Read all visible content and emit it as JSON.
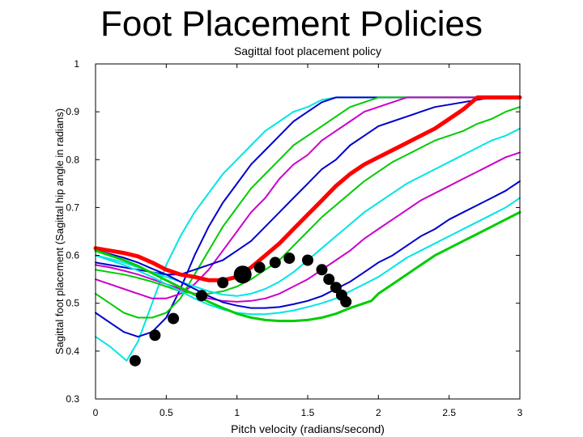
{
  "slide": {
    "title": "Foot Placement Policies"
  },
  "chart_data": {
    "type": "line",
    "title": "Sagittal foot placement policy",
    "xlabel": "Pitch velocity (radians/second)",
    "ylabel": "Sagittal foot placement (Sagittal hip angle in radians)",
    "xlim": [
      0,
      3
    ],
    "ylim": [
      0.3,
      1
    ],
    "xticks": [
      0,
      0.5,
      1,
      1.5,
      2,
      2.5,
      3
    ],
    "xtick_labels": [
      "0",
      "0.5",
      "1",
      "1.5",
      "2",
      "2.5",
      "3"
    ],
    "yticks": [
      0.3,
      0.4,
      0.5,
      0.6,
      0.7,
      0.8,
      0.9,
      1
    ],
    "ytick_labels": [
      "0.3",
      "0.4",
      "0.5",
      "0.6",
      "0.7",
      "0.8",
      "0.9",
      "1"
    ],
    "grid": false,
    "legend": "none",
    "series": [
      {
        "color": "#00e5e5",
        "width": 2,
        "x": [
          0,
          0.1,
          0.22,
          0.3,
          0.4,
          0.5,
          0.6,
          0.7,
          0.8,
          0.9,
          1.0,
          1.1,
          1.2,
          1.3,
          1.4,
          1.5,
          1.6,
          1.7,
          1.8,
          1.9,
          2.0,
          2.1,
          2.2,
          2.3,
          2.4,
          2.5,
          2.6,
          2.7,
          2.8,
          2.9,
          3.0
        ],
        "y": [
          0.43,
          0.41,
          0.38,
          0.42,
          0.5,
          0.58,
          0.64,
          0.69,
          0.73,
          0.77,
          0.8,
          0.83,
          0.86,
          0.88,
          0.9,
          0.91,
          0.925,
          0.93,
          0.93,
          0.93,
          0.93,
          0.93,
          0.93,
          0.93,
          0.93,
          0.93,
          0.93,
          0.93,
          0.93,
          0.93,
          0.93
        ]
      },
      {
        "color": "#0000cc",
        "width": 2,
        "x": [
          0,
          0.1,
          0.2,
          0.3,
          0.4,
          0.5,
          0.6,
          0.7,
          0.8,
          0.9,
          1.0,
          1.1,
          1.2,
          1.3,
          1.4,
          1.5,
          1.6,
          1.7,
          1.8,
          1.9,
          2.0,
          2.1,
          2.2,
          2.3,
          2.4,
          2.5,
          2.6,
          2.7,
          2.8,
          2.9,
          3.0
        ],
        "y": [
          0.48,
          0.46,
          0.44,
          0.43,
          0.44,
          0.47,
          0.53,
          0.6,
          0.66,
          0.71,
          0.75,
          0.79,
          0.82,
          0.85,
          0.88,
          0.9,
          0.92,
          0.93,
          0.93,
          0.93,
          0.93,
          0.93,
          0.93,
          0.93,
          0.93,
          0.93,
          0.93,
          0.93,
          0.93,
          0.93,
          0.93
        ]
      },
      {
        "color": "#00cc00",
        "width": 2,
        "x": [
          0,
          0.1,
          0.2,
          0.3,
          0.4,
          0.5,
          0.6,
          0.7,
          0.8,
          0.9,
          1.0,
          1.1,
          1.2,
          1.3,
          1.4,
          1.5,
          1.6,
          1.7,
          1.8,
          1.9,
          2.0,
          2.1,
          2.2,
          2.3,
          2.4,
          2.5,
          2.6,
          2.7,
          2.8,
          2.9,
          3.0
        ],
        "y": [
          0.52,
          0.5,
          0.48,
          0.47,
          0.47,
          0.48,
          0.51,
          0.56,
          0.61,
          0.66,
          0.7,
          0.74,
          0.77,
          0.8,
          0.83,
          0.85,
          0.87,
          0.89,
          0.91,
          0.92,
          0.93,
          0.93,
          0.93,
          0.93,
          0.93,
          0.93,
          0.93,
          0.93,
          0.93,
          0.93,
          0.93
        ]
      },
      {
        "color": "#cc00cc",
        "width": 2,
        "x": [
          0,
          0.1,
          0.2,
          0.3,
          0.4,
          0.5,
          0.6,
          0.7,
          0.8,
          0.9,
          1.0,
          1.1,
          1.2,
          1.3,
          1.4,
          1.5,
          1.6,
          1.7,
          1.8,
          1.9,
          2.0,
          2.1,
          2.2,
          2.3,
          2.4,
          2.5,
          2.6,
          2.7,
          2.8,
          2.9,
          3.0
        ],
        "y": [
          0.55,
          0.54,
          0.53,
          0.52,
          0.51,
          0.51,
          0.52,
          0.54,
          0.57,
          0.61,
          0.65,
          0.69,
          0.72,
          0.76,
          0.79,
          0.81,
          0.84,
          0.86,
          0.88,
          0.9,
          0.91,
          0.92,
          0.93,
          0.93,
          0.93,
          0.93,
          0.93,
          0.93,
          0.93,
          0.93,
          0.93
        ]
      },
      {
        "color": "#0000cc",
        "width": 2,
        "x": [
          0,
          0.1,
          0.2,
          0.3,
          0.4,
          0.5,
          0.6,
          0.7,
          0.8,
          0.9,
          1.0,
          1.1,
          1.2,
          1.3,
          1.4,
          1.5,
          1.6,
          1.7,
          1.8,
          1.9,
          2.0,
          2.1,
          2.2,
          2.3,
          2.4,
          2.5,
          2.6,
          2.7,
          2.8,
          2.9,
          3.0
        ],
        "y": [
          0.585,
          0.58,
          0.575,
          0.57,
          0.565,
          0.56,
          0.56,
          0.57,
          0.58,
          0.59,
          0.61,
          0.63,
          0.66,
          0.69,
          0.72,
          0.75,
          0.78,
          0.8,
          0.83,
          0.85,
          0.87,
          0.88,
          0.89,
          0.9,
          0.91,
          0.915,
          0.92,
          0.925,
          0.93,
          0.93,
          0.93
        ]
      },
      {
        "color": "#ff0000",
        "width": 5,
        "x": [
          0,
          0.1,
          0.2,
          0.3,
          0.4,
          0.5,
          0.6,
          0.7,
          0.8,
          0.9,
          1.0,
          1.1,
          1.2,
          1.3,
          1.4,
          1.5,
          1.6,
          1.7,
          1.8,
          1.9,
          2.0,
          2.1,
          2.2,
          2.3,
          2.4,
          2.5,
          2.6,
          2.7,
          2.8,
          2.9,
          3.0
        ],
        "y": [
          0.615,
          0.61,
          0.605,
          0.598,
          0.585,
          0.57,
          0.56,
          0.555,
          0.548,
          0.548,
          0.555,
          0.575,
          0.6,
          0.625,
          0.655,
          0.685,
          0.715,
          0.745,
          0.77,
          0.79,
          0.805,
          0.82,
          0.835,
          0.85,
          0.865,
          0.885,
          0.905,
          0.93,
          0.93,
          0.93,
          0.93
        ]
      },
      {
        "color": "#00cc00",
        "width": 2,
        "x": [
          0,
          0.1,
          0.2,
          0.3,
          0.4,
          0.5,
          0.6,
          0.7,
          0.8,
          0.9,
          1.0,
          1.1,
          1.2,
          1.3,
          1.4,
          1.5,
          1.6,
          1.7,
          1.8,
          1.9,
          2.0,
          2.1,
          2.2,
          2.3,
          2.4,
          2.5,
          2.6,
          2.7,
          2.8,
          2.9,
          3.0
        ],
        "y": [
          0.57,
          0.565,
          0.56,
          0.553,
          0.545,
          0.535,
          0.525,
          0.52,
          0.52,
          0.525,
          0.535,
          0.55,
          0.57,
          0.59,
          0.62,
          0.65,
          0.68,
          0.705,
          0.73,
          0.755,
          0.775,
          0.795,
          0.81,
          0.825,
          0.84,
          0.85,
          0.86,
          0.875,
          0.885,
          0.9,
          0.91
        ]
      },
      {
        "color": "#00e5e5",
        "width": 2,
        "x": [
          0,
          0.1,
          0.2,
          0.3,
          0.4,
          0.5,
          0.6,
          0.7,
          0.8,
          0.9,
          1.0,
          1.1,
          1.2,
          1.3,
          1.4,
          1.5,
          1.6,
          1.7,
          1.8,
          1.9,
          2.0,
          2.1,
          2.2,
          2.3,
          2.4,
          2.5,
          2.6,
          2.7,
          2.8,
          2.9,
          3.0
        ],
        "y": [
          0.6,
          0.593,
          0.585,
          0.575,
          0.565,
          0.555,
          0.545,
          0.535,
          0.525,
          0.518,
          0.515,
          0.52,
          0.53,
          0.545,
          0.565,
          0.59,
          0.615,
          0.64,
          0.665,
          0.69,
          0.71,
          0.73,
          0.75,
          0.765,
          0.78,
          0.795,
          0.81,
          0.825,
          0.84,
          0.85,
          0.865
        ]
      },
      {
        "color": "#cc00cc",
        "width": 2,
        "x": [
          0,
          0.1,
          0.2,
          0.3,
          0.4,
          0.5,
          0.6,
          0.7,
          0.8,
          0.9,
          1.0,
          1.1,
          1.2,
          1.3,
          1.4,
          1.5,
          1.6,
          1.7,
          1.8,
          1.9,
          2.0,
          2.1,
          2.2,
          2.3,
          2.4,
          2.5,
          2.6,
          2.7,
          2.8,
          2.9,
          3.0
        ],
        "y": [
          0.58,
          0.575,
          0.568,
          0.56,
          0.55,
          0.54,
          0.53,
          0.52,
          0.51,
          0.505,
          0.503,
          0.505,
          0.51,
          0.52,
          0.535,
          0.55,
          0.57,
          0.59,
          0.61,
          0.635,
          0.655,
          0.675,
          0.695,
          0.715,
          0.73,
          0.745,
          0.76,
          0.775,
          0.79,
          0.805,
          0.815
        ]
      },
      {
        "color": "#0000cc",
        "width": 2,
        "x": [
          0,
          0.1,
          0.2,
          0.3,
          0.4,
          0.5,
          0.6,
          0.7,
          0.8,
          0.9,
          1.0,
          1.1,
          1.2,
          1.3,
          1.4,
          1.5,
          1.6,
          1.7,
          1.8,
          1.9,
          2.0,
          2.1,
          2.2,
          2.3,
          2.4,
          2.5,
          2.6,
          2.7,
          2.8,
          2.9,
          3.0
        ],
        "y": [
          0.61,
          0.603,
          0.595,
          0.585,
          0.572,
          0.56,
          0.545,
          0.53,
          0.515,
          0.502,
          0.495,
          0.49,
          0.49,
          0.492,
          0.498,
          0.505,
          0.515,
          0.53,
          0.545,
          0.565,
          0.585,
          0.6,
          0.62,
          0.64,
          0.655,
          0.675,
          0.69,
          0.705,
          0.72,
          0.735,
          0.755
        ]
      },
      {
        "color": "#00e5e5",
        "width": 2,
        "x": [
          0,
          0.1,
          0.2,
          0.3,
          0.4,
          0.5,
          0.6,
          0.7,
          0.8,
          0.9,
          1.0,
          1.1,
          1.2,
          1.3,
          1.4,
          1.5,
          1.6,
          1.7,
          1.8,
          1.9,
          2.0,
          2.1,
          2.2,
          2.3,
          2.4,
          2.5,
          2.6,
          2.7,
          2.8,
          2.9,
          3.0
        ],
        "y": [
          0.6,
          0.59,
          0.58,
          0.568,
          0.555,
          0.54,
          0.525,
          0.51,
          0.497,
          0.487,
          0.48,
          0.477,
          0.477,
          0.48,
          0.485,
          0.492,
          0.5,
          0.51,
          0.525,
          0.54,
          0.555,
          0.575,
          0.595,
          0.61,
          0.625,
          0.64,
          0.655,
          0.67,
          0.685,
          0.7,
          0.72
        ]
      },
      {
        "color": "#00cc00",
        "width": 3,
        "x": [
          0,
          0.1,
          0.2,
          0.3,
          0.4,
          0.5,
          0.6,
          0.7,
          0.8,
          0.9,
          1.0,
          1.1,
          1.2,
          1.3,
          1.4,
          1.5,
          1.6,
          1.7,
          1.8,
          1.85,
          1.9,
          1.95,
          2.0,
          2.1,
          2.2,
          2.3,
          2.4,
          2.5,
          2.6,
          2.7,
          2.8,
          2.9,
          3.0
        ],
        "y": [
          0.61,
          0.6,
          0.59,
          0.578,
          0.563,
          0.548,
          0.533,
          0.518,
          0.503,
          0.49,
          0.478,
          0.47,
          0.465,
          0.463,
          0.463,
          0.465,
          0.47,
          0.478,
          0.49,
          0.495,
          0.5,
          0.505,
          0.52,
          0.54,
          0.56,
          0.58,
          0.6,
          0.615,
          0.63,
          0.645,
          0.66,
          0.675,
          0.69
        ]
      }
    ],
    "markers": {
      "x": [
        0.28,
        0.42,
        0.55,
        0.75,
        0.9,
        1.04,
        1.16,
        1.27,
        1.37,
        1.5,
        1.6,
        1.65,
        1.7,
        1.74,
        1.77
      ],
      "y": [
        0.38,
        0.433,
        0.468,
        0.516,
        0.543,
        0.56,
        0.575,
        0.585,
        0.594,
        0.59,
        0.57,
        0.55,
        0.533,
        0.517,
        0.503
      ],
      "sizes": [
        7,
        7,
        7,
        7,
        7,
        11,
        7,
        7,
        7,
        7,
        7,
        7,
        7,
        7,
        7
      ],
      "color": "#000000"
    }
  }
}
